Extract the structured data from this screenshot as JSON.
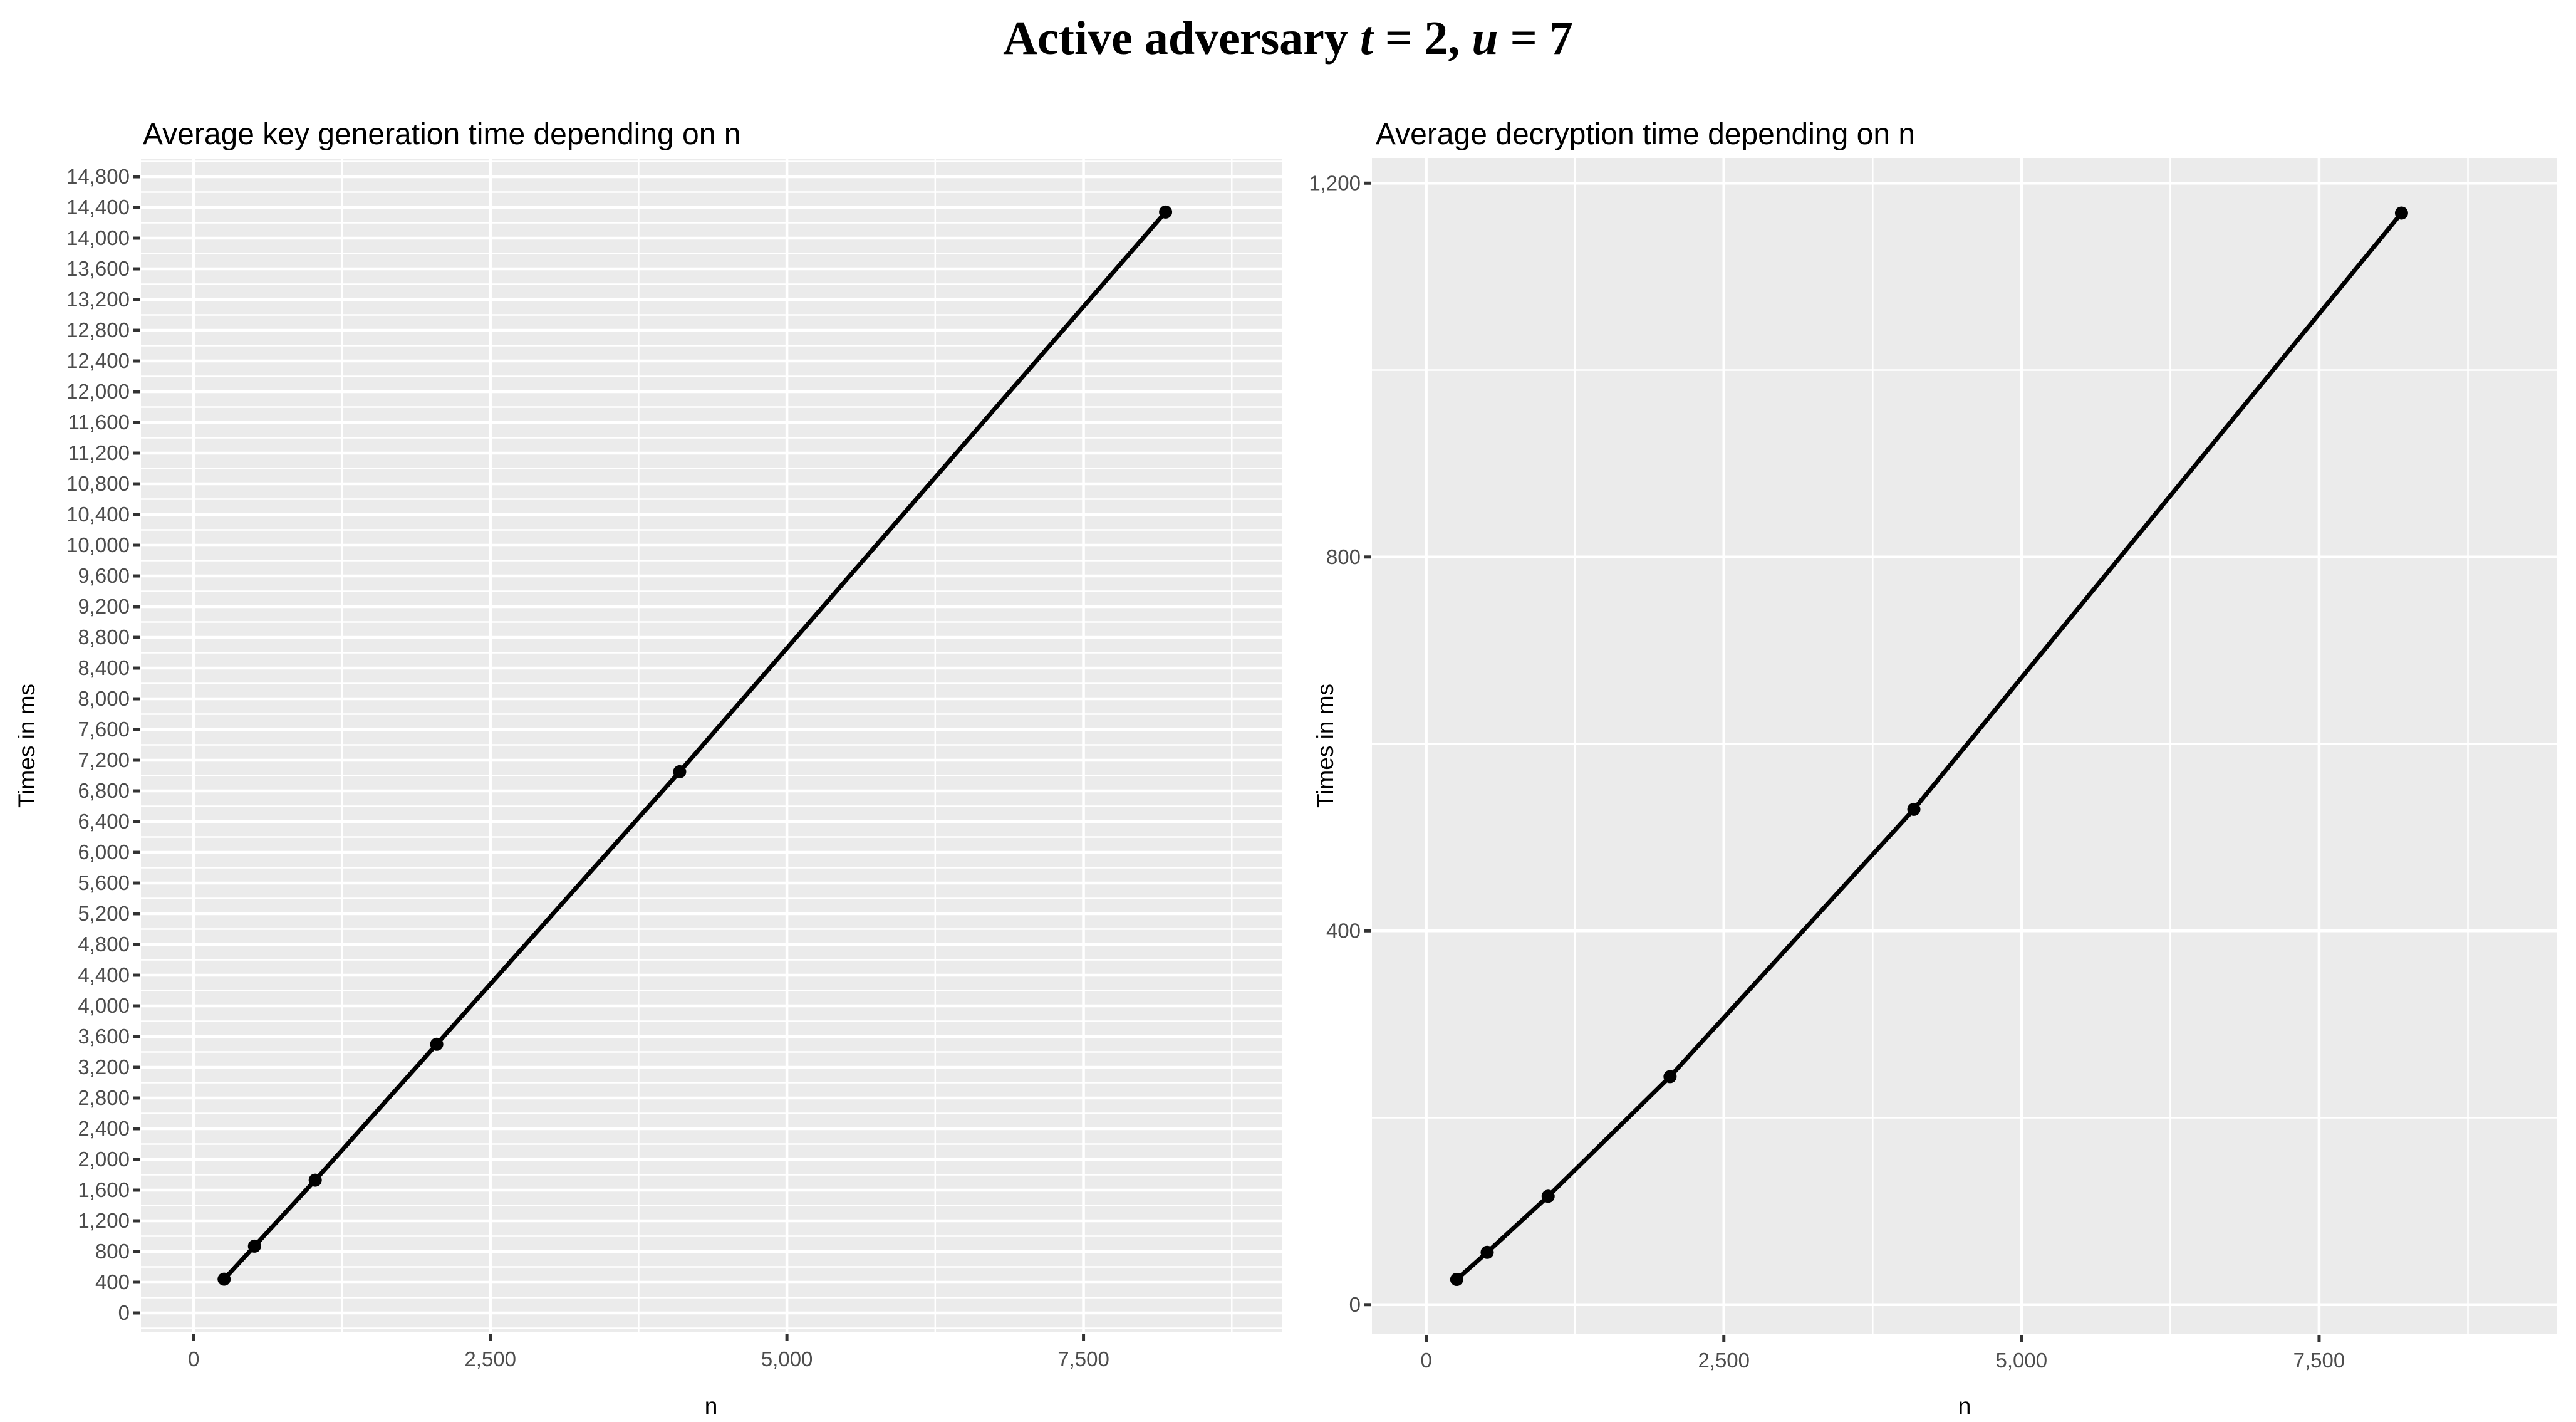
{
  "page_title": {
    "segments": [
      {
        "text": "Active adversary ",
        "italic": false
      },
      {
        "text": "t",
        "italic": true
      },
      {
        "text": " = 2, ",
        "italic": false
      },
      {
        "text": "u",
        "italic": true
      },
      {
        "text": " = 7",
        "italic": false
      }
    ],
    "plain": "Active adversary t = 2, u = 7"
  },
  "colors": {
    "panel_bg": "#EBEBEB",
    "grid": "#FFFFFF",
    "tick_text": "#4D4D4D",
    "tick_mark": "#333333",
    "series": "#000000",
    "title_text": "#000000"
  },
  "chart_data": [
    {
      "type": "line",
      "title": "Average key generation time depending on n",
      "xlabel": "n",
      "ylabel": "Times in ms",
      "x": [
        256,
        512,
        1024,
        2048,
        4096,
        8192
      ],
      "y": [
        440,
        870,
        1730,
        3500,
        7050,
        14340
      ],
      "x_ticks": [
        0,
        2500,
        5000,
        7500
      ],
      "x_minor_ticks": [
        1250,
        3750,
        6250,
        8750
      ],
      "y_ticks": {
        "min": 0,
        "max": 14800,
        "step": 400
      },
      "xlim": [
        -445,
        9171
      ],
      "ylim": [
        -253,
        15037
      ],
      "grid": "major-and-minor-white-on-gray",
      "legend": "none",
      "marker": "filled-circle"
    },
    {
      "type": "line",
      "title": "Average decryption time depending on n",
      "xlabel": "n",
      "ylabel": "Times in ms",
      "x": [
        256,
        512,
        1024,
        2048,
        4096,
        8192
      ],
      "y": [
        27,
        56,
        116,
        244,
        530,
        1168
      ],
      "x_ticks": [
        0,
        2500,
        5000,
        7500
      ],
      "x_minor_ticks": [
        1250,
        3750,
        6250,
        8750
      ],
      "y_ticks": {
        "min": 0,
        "max": 1200,
        "step": 400
      },
      "xlim": [
        -456,
        9500
      ],
      "ylim": [
        -31,
        1227
      ],
      "grid": "major-and-minor-white-on-gray",
      "legend": "none",
      "marker": "filled-circle"
    }
  ]
}
